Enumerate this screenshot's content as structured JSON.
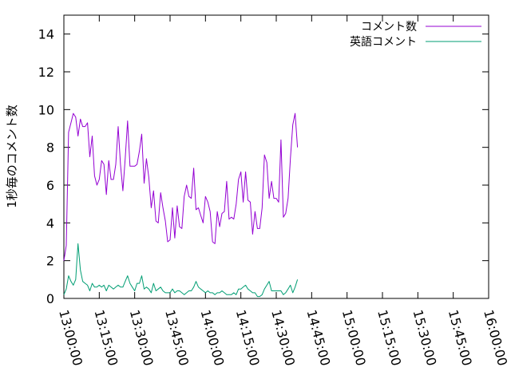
{
  "chart_data": {
    "type": "line",
    "title": "",
    "xlabel": "",
    "ylabel": "1秒毎のコメント数",
    "x_start": "13:00:00",
    "x_step": "00:01:00",
    "xlim": [
      "13:00:00",
      "16:00:00"
    ],
    "ylim": [
      0,
      15
    ],
    "y_ticks": [
      "0",
      "2",
      "4",
      "6",
      "8",
      "10",
      "12",
      "14"
    ],
    "x_ticks": [
      "13:00:00",
      "13:15:00",
      "13:30:00",
      "13:45:00",
      "14:00:00",
      "14:15:00",
      "14:30:00",
      "14:45:00",
      "15:00:00",
      "15:15:00",
      "15:30:00",
      "15:45:00",
      "16:00:00"
    ],
    "grid": false,
    "legend_position": "top-right",
    "series": [
      {
        "name": "コメント数",
        "color": "#9400d3",
        "values": [
          2.0,
          2.8,
          8.8,
          9.3,
          9.8,
          9.6,
          8.6,
          9.5,
          9.1,
          9.1,
          9.3,
          7.5,
          8.6,
          6.5,
          6.0,
          6.3,
          7.3,
          7.1,
          5.5,
          7.3,
          6.3,
          6.3,
          7.1,
          9.1,
          7.1,
          5.7,
          7.4,
          9.4,
          7.0,
          7.0,
          7.0,
          7.1,
          7.8,
          8.7,
          6.1,
          7.4,
          6.4,
          4.8,
          5.7,
          4.1,
          4.0,
          5.6,
          4.8,
          4.1,
          3.0,
          3.1,
          4.8,
          3.2,
          4.9,
          3.8,
          3.7,
          5.4,
          6.0,
          5.4,
          5.3,
          6.9,
          4.7,
          4.8,
          4.4,
          4.0,
          5.4,
          5.1,
          4.6,
          3.0,
          2.9,
          4.6,
          3.8,
          4.5,
          4.6,
          6.2,
          4.2,
          4.3,
          4.2,
          5.0,
          6.3,
          6.7,
          5.1,
          6.7,
          5.2,
          5.1,
          3.4,
          4.6,
          3.7,
          3.7,
          4.8,
          7.6,
          7.2,
          5.3,
          6.2,
          5.3,
          5.3,
          5.1,
          8.4,
          4.3,
          4.5,
          5.3,
          7.4,
          9.2,
          9.8,
          8.0
        ]
      },
      {
        "name": "英語コメント",
        "color": "#009e73",
        "values": [
          0.2,
          0.5,
          1.2,
          0.9,
          0.7,
          1.0,
          2.9,
          1.5,
          0.9,
          0.8,
          0.7,
          0.4,
          0.8,
          0.6,
          0.6,
          0.7,
          0.6,
          0.7,
          0.4,
          0.7,
          0.6,
          0.5,
          0.6,
          0.7,
          0.6,
          0.6,
          0.9,
          1.2,
          0.8,
          0.6,
          0.4,
          0.8,
          0.8,
          1.2,
          0.5,
          0.6,
          0.5,
          0.3,
          0.8,
          0.4,
          0.5,
          0.6,
          0.4,
          0.3,
          0.3,
          0.3,
          0.5,
          0.3,
          0.4,
          0.4,
          0.3,
          0.2,
          0.3,
          0.4,
          0.4,
          0.6,
          0.9,
          0.6,
          0.5,
          0.4,
          0.3,
          0.4,
          0.3,
          0.3,
          0.2,
          0.3,
          0.3,
          0.4,
          0.3,
          0.2,
          0.2,
          0.2,
          0.3,
          0.2,
          0.5,
          0.5,
          0.6,
          0.7,
          0.5,
          0.4,
          0.3,
          0.3,
          0.1,
          0.1,
          0.2,
          0.5,
          0.7,
          0.9,
          0.4,
          0.4,
          0.4,
          0.4,
          0.4,
          0.2,
          0.3,
          0.5,
          0.7,
          0.3,
          0.6,
          1.0
        ]
      }
    ]
  }
}
